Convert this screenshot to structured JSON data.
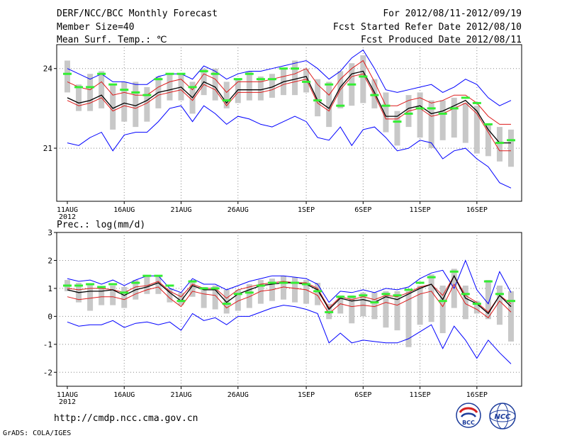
{
  "header": {
    "title": "DERF/NCC/BCC Monthly Forecast",
    "member_size": "Member Size=40",
    "variable": "Mean Surf. Temp.: ℃",
    "forecast_period": "For 2012/08/11-2012/09/19",
    "start_refer": "Fcst Started Refer Date 2012/08/10",
    "produced": "Fcst Produced Date 2012/08/11"
  },
  "footer": {
    "url": "http://cmdp.ncc.cma.gov.cn",
    "grads": "GrADS: COLA/IGES",
    "logo_bcc": "BCC",
    "logo_ncc": "NCC"
  },
  "colors": {
    "blue": "#0000ff",
    "red": "#dd1a1a",
    "black": "#000000",
    "green": "#33ee33",
    "gray": "#c8c8c8",
    "grid": "#888888"
  },
  "chart_data": [
    {
      "type": "line",
      "name": "temperature",
      "title": "Mean Surf. Temp.: ℃",
      "x_day_range": [
        1,
        40
      ],
      "x_ticks": [
        {
          "day": 1,
          "label": "11AUG"
        },
        {
          "day": 6,
          "label": "16AUG"
        },
        {
          "day": 11,
          "label": "21AUG"
        },
        {
          "day": 16,
          "label": "26AUG"
        },
        {
          "day": 22,
          "label": "1SEP"
        },
        {
          "day": 27,
          "label": "6SEP"
        },
        {
          "day": 32,
          "label": "11SEP"
        },
        {
          "day": 37,
          "label": "16SEP"
        }
      ],
      "year_label": "2012",
      "ylim": [
        19.0,
        24.9
      ],
      "y_ticks": [
        21,
        24
      ],
      "series": [
        {
          "name": "max",
          "color": "blue",
          "values": [
            24.0,
            23.8,
            23.6,
            23.8,
            23.5,
            23.5,
            23.4,
            23.4,
            23.7,
            23.8,
            23.8,
            23.6,
            24.1,
            23.9,
            23.6,
            23.8,
            23.9,
            23.9,
            24.0,
            24.1,
            24.2,
            24.3,
            24.0,
            23.6,
            23.9,
            24.4,
            24.7,
            24.0,
            23.2,
            23.1,
            23.2,
            23.3,
            23.4,
            23.1,
            23.3,
            23.6,
            23.4,
            22.9,
            22.6,
            22.8
          ]
        },
        {
          "name": "upper",
          "color": "red",
          "values": [
            23.5,
            23.3,
            23.2,
            23.5,
            23.0,
            23.1,
            23.0,
            23.0,
            23.3,
            23.5,
            23.6,
            23.2,
            23.8,
            23.6,
            23.1,
            23.5,
            23.5,
            23.5,
            23.6,
            23.7,
            23.8,
            24.0,
            23.4,
            23.0,
            23.6,
            24.0,
            24.3,
            23.5,
            22.6,
            22.6,
            22.8,
            22.9,
            22.7,
            22.8,
            23.0,
            23.0,
            22.7,
            22.2,
            21.9,
            21.9
          ]
        },
        {
          "name": "mean",
          "color": "black",
          "values": [
            22.9,
            22.7,
            22.8,
            23.0,
            22.5,
            22.7,
            22.6,
            22.8,
            23.1,
            23.2,
            23.3,
            22.9,
            23.5,
            23.3,
            22.7,
            23.2,
            23.2,
            23.2,
            23.3,
            23.5,
            23.6,
            23.7,
            22.8,
            22.5,
            23.3,
            23.8,
            23.9,
            23.1,
            22.2,
            22.2,
            22.5,
            22.6,
            22.3,
            22.4,
            22.6,
            22.8,
            22.4,
            21.7,
            21.2,
            21.2
          ]
        },
        {
          "name": "lower",
          "color": "red",
          "values": [
            22.8,
            22.6,
            22.7,
            22.9,
            22.4,
            22.6,
            22.5,
            22.7,
            23.0,
            23.1,
            23.2,
            22.8,
            23.4,
            23.2,
            22.6,
            23.1,
            23.1,
            23.1,
            23.2,
            23.4,
            23.5,
            23.6,
            22.7,
            22.4,
            23.2,
            23.7,
            23.8,
            23.0,
            22.1,
            22.1,
            22.4,
            22.5,
            22.2,
            22.3,
            22.5,
            22.7,
            22.3,
            21.6,
            20.9,
            20.9
          ]
        },
        {
          "name": "min",
          "color": "blue",
          "values": [
            21.2,
            21.1,
            21.4,
            21.6,
            20.9,
            21.5,
            21.6,
            21.6,
            22.0,
            22.5,
            22.6,
            22.0,
            22.6,
            22.3,
            21.9,
            22.2,
            22.1,
            21.9,
            21.8,
            22.0,
            22.2,
            22.0,
            21.4,
            21.3,
            21.8,
            21.1,
            21.7,
            21.8,
            21.4,
            20.9,
            21.0,
            21.3,
            21.2,
            20.6,
            20.9,
            21.0,
            20.6,
            20.3,
            19.7,
            19.5
          ]
        }
      ],
      "ensemble_median": [
        23.8,
        23.3,
        23.3,
        23.8,
        23.4,
        23.2,
        23.1,
        23.0,
        23.6,
        23.8,
        23.8,
        23.3,
        23.9,
        23.8,
        22.8,
        23.6,
        23.8,
        23.6,
        23.6,
        24.0,
        24.0,
        23.5,
        22.8,
        23.4,
        22.6,
        23.4,
        23.7,
        23.0,
        22.6,
        22.0,
        22.3,
        22.5,
        22.5,
        22.3,
        22.5,
        22.9,
        22.7,
        21.9,
        21.2,
        21.3
      ],
      "ensemble_range": [
        [
          23.1,
          24.3
        ],
        [
          22.4,
          23.4
        ],
        [
          22.4,
          23.8
        ],
        [
          22.5,
          23.9
        ],
        [
          21.7,
          23.4
        ],
        [
          22.0,
          23.5
        ],
        [
          21.8,
          23.5
        ],
        [
          22.0,
          23.3
        ],
        [
          22.5,
          23.7
        ],
        [
          22.8,
          23.8
        ],
        [
          22.8,
          23.8
        ],
        [
          22.3,
          23.5
        ],
        [
          23.0,
          24.0
        ],
        [
          22.8,
          24.0
        ],
        [
          22.5,
          23.5
        ],
        [
          22.7,
          23.6
        ],
        [
          22.8,
          23.9
        ],
        [
          22.8,
          23.7
        ],
        [
          22.9,
          23.8
        ],
        [
          23.0,
          24.0
        ],
        [
          23.0,
          24.3
        ],
        [
          23.1,
          24.0
        ],
        [
          22.2,
          23.6
        ],
        [
          21.8,
          23.5
        ],
        [
          22.5,
          23.9
        ],
        [
          22.6,
          24.2
        ],
        [
          22.7,
          24.5
        ],
        [
          22.5,
          23.6
        ],
        [
          21.6,
          23.1
        ],
        [
          21.1,
          22.4
        ],
        [
          21.8,
          23.0
        ],
        [
          21.4,
          23.1
        ],
        [
          21.0,
          22.8
        ],
        [
          21.3,
          22.8
        ],
        [
          21.4,
          22.9
        ],
        [
          21.2,
          22.7
        ],
        [
          20.8,
          22.6
        ],
        [
          20.7,
          21.9
        ],
        [
          20.5,
          21.8
        ],
        [
          20.3,
          21.7
        ]
      ]
    },
    {
      "type": "line",
      "name": "precipitation",
      "title": "Prec.: log(mm/d)",
      "x_day_range": [
        1,
        40
      ],
      "x_ticks": [
        {
          "day": 1,
          "label": "11AUG"
        },
        {
          "day": 6,
          "label": "16AUG"
        },
        {
          "day": 11,
          "label": "21AUG"
        },
        {
          "day": 16,
          "label": "26AUG"
        },
        {
          "day": 22,
          "label": "1SEP"
        },
        {
          "day": 27,
          "label": "6SEP"
        },
        {
          "day": 32,
          "label": "11SEP"
        },
        {
          "day": 37,
          "label": "16SEP"
        }
      ],
      "year_label": "2012",
      "ylim": [
        -2.5,
        3.0
      ],
      "y_ticks": [
        -2,
        -1,
        0,
        1,
        2,
        3
      ],
      "series": [
        {
          "name": "max",
          "color": "blue",
          "values": [
            1.35,
            1.25,
            1.3,
            1.15,
            1.3,
            1.1,
            1.3,
            1.45,
            1.45,
            1.0,
            0.85,
            1.35,
            1.15,
            1.15,
            0.95,
            1.1,
            1.25,
            1.35,
            1.45,
            1.45,
            1.4,
            1.35,
            1.15,
            0.5,
            0.9,
            0.85,
            0.95,
            0.85,
            1.0,
            0.95,
            1.05,
            1.35,
            1.55,
            1.65,
            1.0,
            2.0,
            0.95,
            0.45,
            1.6,
            0.85
          ]
        },
        {
          "name": "upper",
          "color": "red",
          "values": [
            1.0,
            0.95,
            1.0,
            1.0,
            0.95,
            0.85,
            1.05,
            1.1,
            1.25,
            0.9,
            0.7,
            1.15,
            1.0,
            1.0,
            0.65,
            0.95,
            1.05,
            1.15,
            1.2,
            1.25,
            1.2,
            1.2,
            1.0,
            0.3,
            0.7,
            0.6,
            0.7,
            0.6,
            0.75,
            0.7,
            0.85,
            1.05,
            1.15,
            0.75,
            1.45,
            0.75,
            0.5,
            0.15,
            0.75,
            0.45
          ]
        },
        {
          "name": "mean",
          "color": "black",
          "values": [
            0.95,
            0.85,
            0.9,
            0.9,
            0.95,
            0.75,
            0.95,
            1.05,
            1.2,
            0.85,
            0.55,
            1.1,
            0.95,
            0.95,
            0.5,
            0.8,
            0.95,
            1.1,
            1.15,
            1.2,
            1.2,
            1.15,
            0.95,
            0.25,
            0.65,
            0.55,
            0.6,
            0.5,
            0.7,
            0.6,
            0.8,
            1.0,
            1.15,
            0.6,
            1.45,
            0.65,
            0.45,
            0.1,
            0.75,
            0.35
          ]
        },
        {
          "name": "lower",
          "color": "red",
          "values": [
            0.7,
            0.6,
            0.65,
            0.7,
            0.7,
            0.6,
            0.8,
            0.95,
            1.05,
            0.65,
            0.35,
            0.9,
            0.8,
            0.75,
            0.3,
            0.55,
            0.7,
            0.9,
            0.95,
            1.05,
            1.0,
            0.95,
            0.75,
            0.1,
            0.45,
            0.35,
            0.4,
            0.35,
            0.5,
            0.4,
            0.6,
            0.8,
            0.9,
            0.35,
            1.15,
            0.45,
            0.25,
            -0.05,
            0.55,
            0.15
          ]
        },
        {
          "name": "min",
          "color": "blue",
          "values": [
            -0.2,
            -0.35,
            -0.3,
            -0.3,
            -0.15,
            -0.4,
            -0.25,
            -0.2,
            -0.3,
            -0.2,
            -0.5,
            0.1,
            -0.15,
            -0.05,
            -0.3,
            0.0,
            0.0,
            0.15,
            0.3,
            0.4,
            0.35,
            0.25,
            0.1,
            -0.95,
            -0.6,
            -0.95,
            -0.85,
            -0.9,
            -0.95,
            -0.95,
            -0.8,
            -0.55,
            -0.3,
            -1.15,
            -0.35,
            -0.85,
            -1.5,
            -0.85,
            -1.3,
            -1.7
          ]
        }
      ],
      "ensemble_median": [
        1.1,
        1.1,
        1.15,
        1.05,
        1.15,
        0.85,
        1.2,
        1.45,
        1.45,
        1.1,
        0.55,
        1.25,
        1.0,
        1.0,
        0.45,
        0.8,
        0.85,
        1.1,
        1.2,
        1.2,
        1.2,
        1.15,
        0.9,
        0.15,
        0.7,
        0.7,
        0.75,
        0.5,
        0.8,
        0.75,
        0.95,
        1.2,
        1.4,
        0.55,
        1.6,
        0.8,
        0.45,
        1.25,
        0.8,
        0.55
      ],
      "ensemble_range": [
        [
          0.9,
          1.3
        ],
        [
          0.5,
          1.2
        ],
        [
          0.2,
          1.15
        ],
        [
          0.4,
          1.05
        ],
        [
          0.4,
          1.1
        ],
        [
          0.3,
          1.05
        ],
        [
          0.6,
          1.3
        ],
        [
          0.8,
          1.45
        ],
        [
          0.8,
          1.45
        ],
        [
          0.5,
          1.0
        ],
        [
          0.4,
          0.85
        ],
        [
          0.7,
          1.3
        ],
        [
          0.3,
          1.05
        ],
        [
          0.25,
          1.1
        ],
        [
          0.1,
          0.95
        ],
        [
          0.2,
          0.95
        ],
        [
          0.3,
          1.15
        ],
        [
          0.45,
          1.3
        ],
        [
          0.55,
          1.35
        ],
        [
          0.6,
          1.45
        ],
        [
          0.5,
          1.4
        ],
        [
          0.45,
          1.3
        ],
        [
          0.4,
          1.2
        ],
        [
          -0.1,
          0.45
        ],
        [
          0.1,
          0.75
        ],
        [
          -0.25,
          0.75
        ],
        [
          0.0,
          0.85
        ],
        [
          -0.1,
          0.85
        ],
        [
          -0.4,
          0.9
        ],
        [
          -0.5,
          0.9
        ],
        [
          -1.1,
          0.9
        ],
        [
          -0.3,
          1.1
        ],
        [
          -0.2,
          1.5
        ],
        [
          -0.6,
          1.1
        ],
        [
          0.3,
          1.7
        ],
        [
          -0.1,
          1.1
        ],
        [
          0.1,
          0.55
        ],
        [
          -0.1,
          1.3
        ],
        [
          -0.3,
          1.1
        ],
        [
          -0.9,
          0.9
        ]
      ]
    }
  ]
}
